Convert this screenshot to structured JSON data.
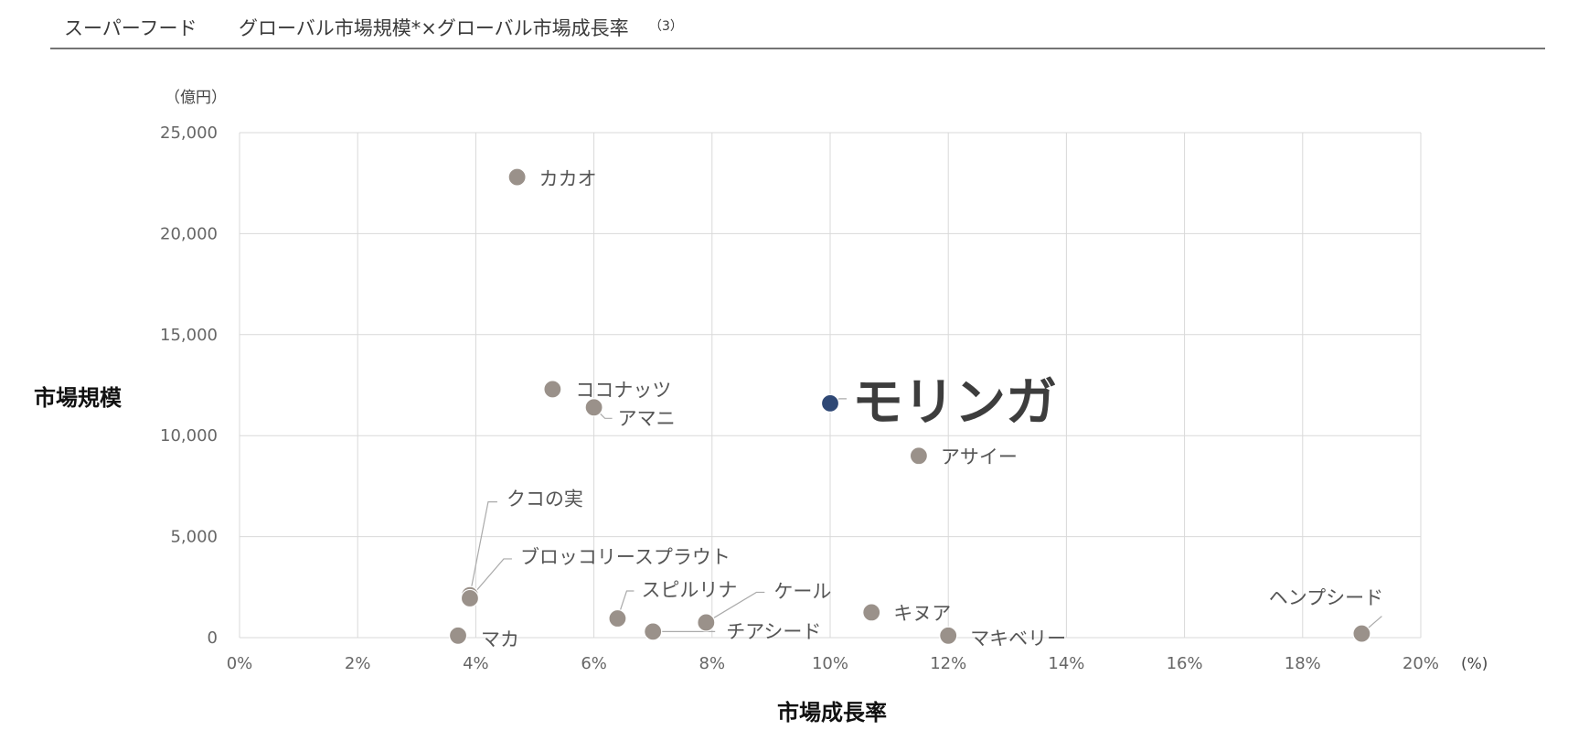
{
  "header": {
    "title_left": "スーパーフード",
    "title_right": "グローバル市場規模*×グローバル市場成長率",
    "title_sup": "（3）"
  },
  "chart_data": {
    "type": "scatter",
    "title": "スーパーフード　グローバル市場規模*×グローバル市場成長率（3）",
    "xlabel": "市場成長率",
    "ylabel": "市場規模",
    "x_unit": "(%)",
    "y_unit": "（億円）",
    "xlim": [
      0,
      20
    ],
    "ylim": [
      0,
      25000
    ],
    "x_ticks": [
      0,
      2,
      4,
      6,
      8,
      10,
      12,
      14,
      16,
      18,
      20
    ],
    "x_tick_labels": [
      "0%",
      "2%",
      "4%",
      "6%",
      "8%",
      "10%",
      "12%",
      "14%",
      "16%",
      "18%",
      "20%"
    ],
    "y_ticks": [
      0,
      5000,
      10000,
      15000,
      20000,
      25000
    ],
    "y_tick_labels": [
      "0",
      "5,000",
      "10,000",
      "15,000",
      "20,000",
      "25,000"
    ],
    "grid": true,
    "colors": {
      "point": "#9a918a",
      "highlight": "#2f4875",
      "grid": "#d9d9d9",
      "leader": "#aaaaaa"
    },
    "points": [
      {
        "label": "カカオ",
        "x": 4.7,
        "y": 22800
      },
      {
        "label": "ココナッツ",
        "x": 5.3,
        "y": 12300
      },
      {
        "label": "アマニ",
        "x": 6.0,
        "y": 11400
      },
      {
        "label": "モリンガ",
        "x": 10.0,
        "y": 11600,
        "highlight": true
      },
      {
        "label": "アサイー",
        "x": 11.5,
        "y": 9000
      },
      {
        "label": "クコの実",
        "x": 3.9,
        "y": 2100
      },
      {
        "label": "ブロッコリースプラウト",
        "x": 3.9,
        "y": 1950
      },
      {
        "label": "マカ",
        "x": 3.7,
        "y": 100
      },
      {
        "label": "スピルリナ",
        "x": 6.4,
        "y": 950
      },
      {
        "label": "チアシード",
        "x": 7.0,
        "y": 300
      },
      {
        "label": "ケール",
        "x": 7.9,
        "y": 750
      },
      {
        "label": "キヌア",
        "x": 10.7,
        "y": 1250
      },
      {
        "label": "マキベリー",
        "x": 12.0,
        "y": 100
      },
      {
        "label": "ヘンプシード",
        "x": 19.0,
        "y": 200
      }
    ]
  }
}
